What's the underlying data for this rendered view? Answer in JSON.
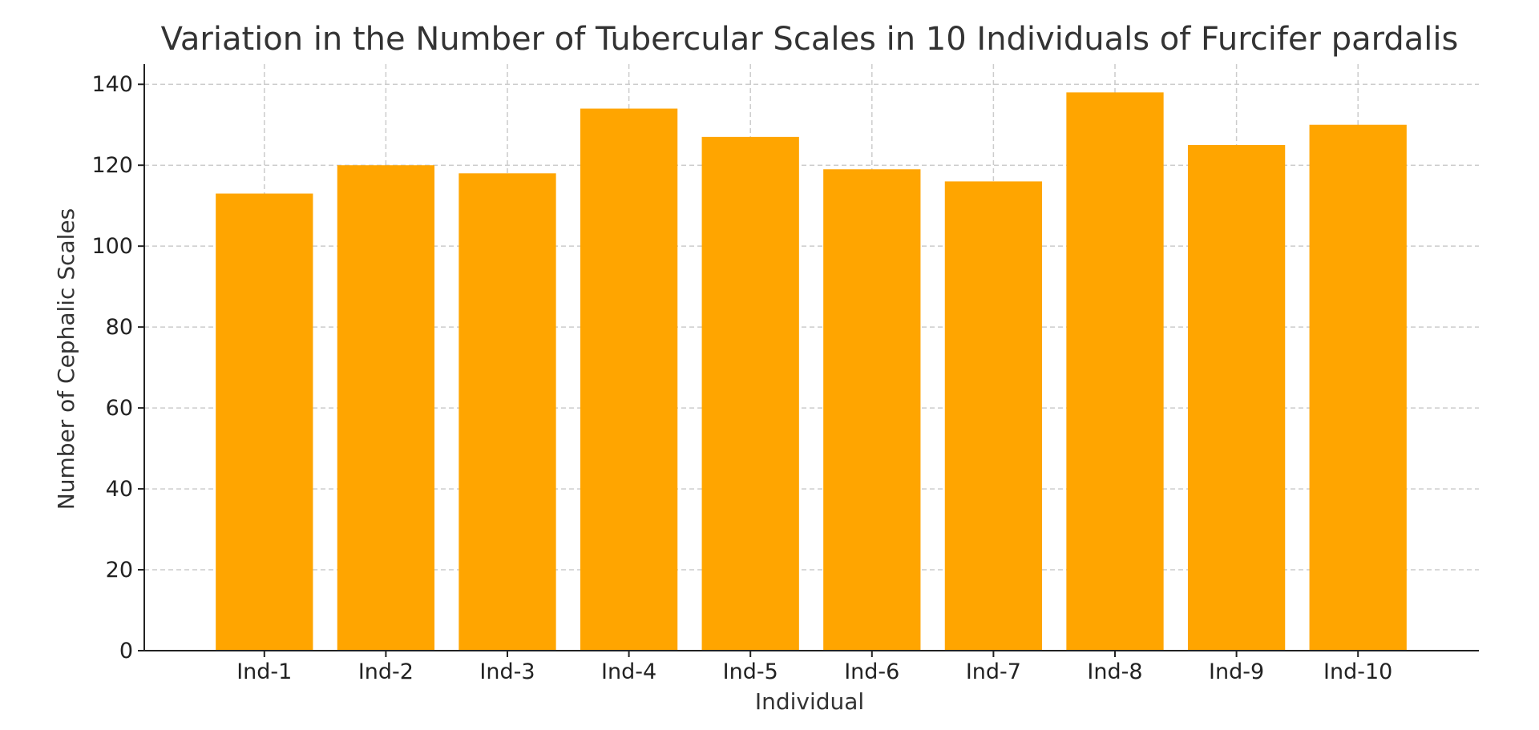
{
  "chart_data": {
    "type": "bar",
    "title": "Variation in the Number of Tubercular Scales in 10 Individuals of Furcifer pardalis",
    "xlabel": "Individual",
    "ylabel": "Number of Cephalic Scales",
    "categories": [
      "Ind-1",
      "Ind-2",
      "Ind-3",
      "Ind-4",
      "Ind-5",
      "Ind-6",
      "Ind-7",
      "Ind-8",
      "Ind-9",
      "Ind-10"
    ],
    "values": [
      113,
      120,
      118,
      134,
      127,
      119,
      116,
      138,
      125,
      130
    ],
    "ylim": [
      0,
      145
    ],
    "yticks": [
      0,
      20,
      40,
      60,
      80,
      100,
      120,
      140
    ],
    "bar_color": "#ffa500",
    "grid": true,
    "legend": "none"
  }
}
